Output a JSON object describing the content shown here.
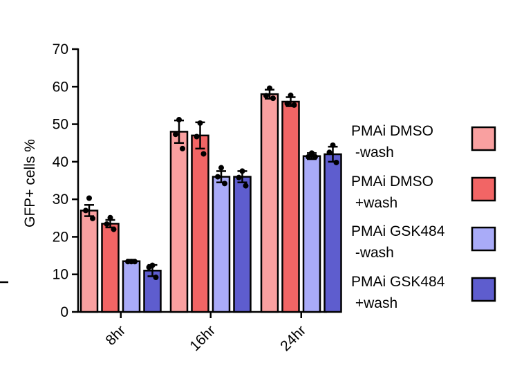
{
  "chart_data": {
    "type": "bar",
    "title": "",
    "xlabel": "",
    "ylabel": "GFP+ cells %",
    "ylim": [
      0,
      70
    ],
    "yticks": [
      0,
      10,
      20,
      30,
      40,
      50,
      60,
      70
    ],
    "categories": [
      "8hr",
      "16hr",
      "24hr"
    ],
    "legend_position": "right",
    "series": [
      {
        "name": "PMAi DMSO -wash",
        "legend_lines": [
          "PMAi DMSO",
          " -wash"
        ],
        "color": "#F9A0A0",
        "values": [
          27,
          48,
          58
        ],
        "errors": [
          1.5,
          3,
          1.2
        ],
        "points": [
          [
            30.3,
            27.0,
            24.9
          ],
          [
            51.2,
            47.3,
            43.5
          ],
          [
            59.6,
            57.6,
            56.9
          ]
        ]
      },
      {
        "name": "PMAi DMSO +wash",
        "legend_lines": [
          "PMAi DMSO",
          " +wash"
        ],
        "color": "#F26565",
        "values": [
          23.5,
          47,
          56
        ],
        "errors": [
          1,
          3.5,
          1.2
        ],
        "points": [
          [
            25.1,
            23.4,
            22.0
          ],
          [
            50.3,
            46.7,
            42.1
          ],
          [
            57.7,
            55.5,
            55.1
          ]
        ]
      },
      {
        "name": "PMAi GSK484 -wash",
        "legend_lines": [
          "PMAi GSK484",
          " -wash"
        ],
        "color": "#A9ABF8",
        "values": [
          13.5,
          36,
          41.5
        ],
        "errors": [
          0.4,
          1.5,
          0.8
        ],
        "points": [
          [
            13.4,
            13.4,
            13.4
          ],
          [
            38.4,
            36.0,
            34.2
          ],
          [
            42.3,
            41.3,
            41.3
          ]
        ]
      },
      {
        "name": "PMAi GSK484 +wash",
        "legend_lines": [
          "PMAi GSK484",
          " +wash"
        ],
        "color": "#5E5DCE",
        "values": [
          11,
          36,
          42
        ],
        "errors": [
          1.5,
          1.5,
          2
        ],
        "points": [
          [
            12.4,
            11.9,
            9.2
          ],
          [
            37.5,
            35.8,
            33.6
          ],
          [
            44.4,
            42.5,
            39.8
          ]
        ]
      }
    ]
  }
}
